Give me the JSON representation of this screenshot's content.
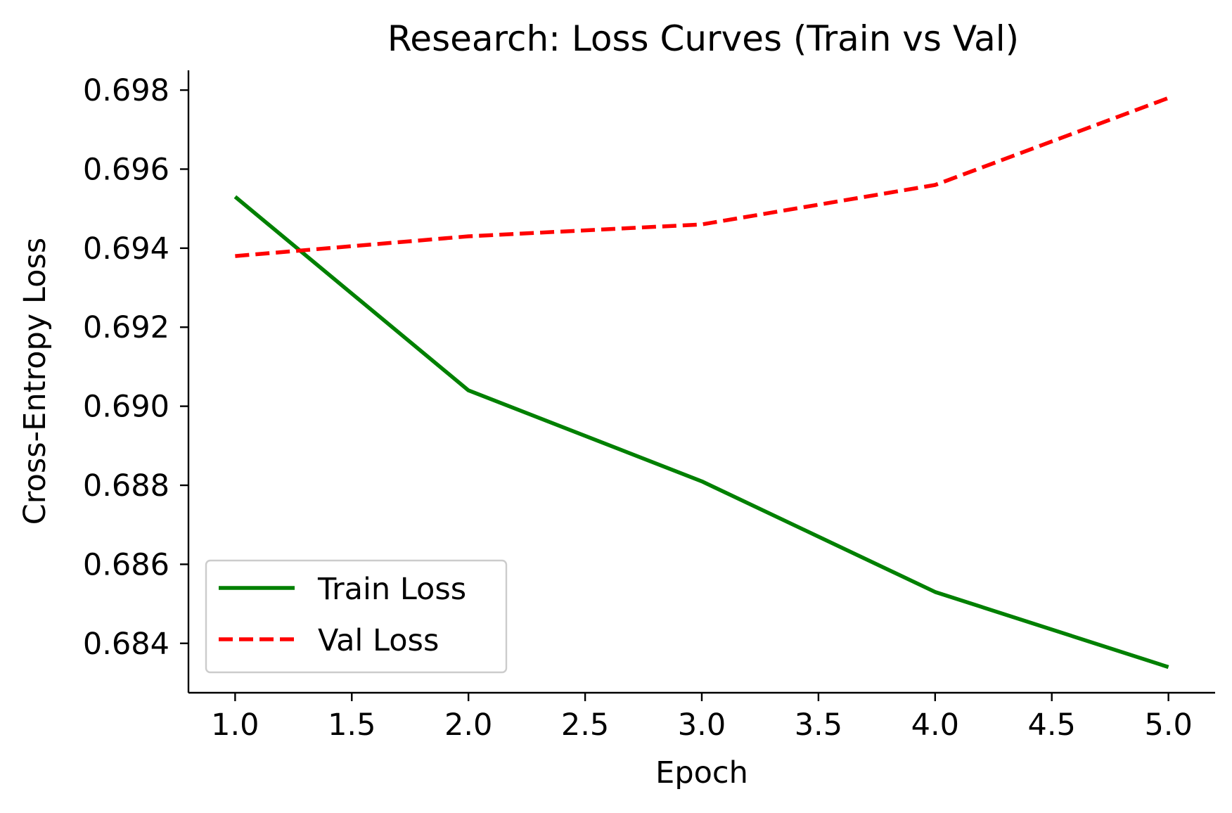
{
  "chart_data": {
    "type": "line",
    "title": "Research: Loss Curves (Train vs Val)",
    "xlabel": "Epoch",
    "ylabel": "Cross-Entropy Loss",
    "xlim": [
      0.8,
      5.2
    ],
    "ylim": [
      0.68275,
      0.6985
    ],
    "xticks": [
      1.0,
      1.5,
      2.0,
      2.5,
      3.0,
      3.5,
      4.0,
      4.5,
      5.0
    ],
    "xtick_labels": [
      "1.0",
      "1.5",
      "2.0",
      "2.5",
      "3.0",
      "3.5",
      "4.0",
      "4.5",
      "5.0"
    ],
    "yticks": [
      0.684,
      0.686,
      0.688,
      0.69,
      0.692,
      0.694,
      0.696,
      0.698
    ],
    "ytick_labels": [
      "0.684",
      "0.686",
      "0.688",
      "0.690",
      "0.692",
      "0.694",
      "0.696",
      "0.698"
    ],
    "grid": false,
    "legend_position": "lower-left",
    "x": [
      1,
      2,
      3,
      4,
      5
    ],
    "series": [
      {
        "name": "Train Loss",
        "values": [
          0.6953,
          0.6904,
          0.6881,
          0.6853,
          0.6834
        ],
        "color": "#008000",
        "style": "solid"
      },
      {
        "name": "Val Loss",
        "values": [
          0.6938,
          0.6943,
          0.6946,
          0.6956,
          0.6978
        ],
        "color": "#ff0000",
        "style": "dashed"
      }
    ]
  }
}
